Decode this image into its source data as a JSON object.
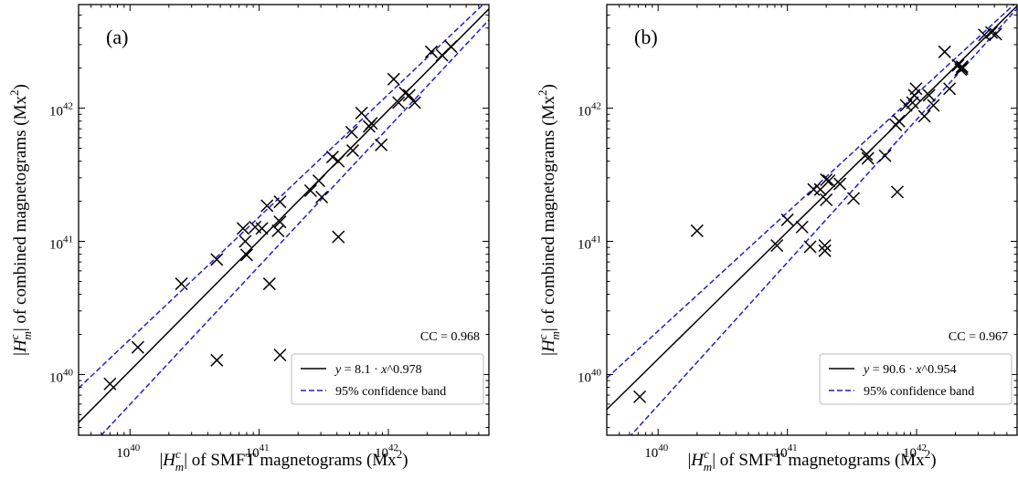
{
  "chart_data": [
    {
      "type": "scatter",
      "panel_label": "(a)",
      "xlabel": "|H_m^c| of SMFT magnetograms (Mx^2)",
      "ylabel": "|H_m^c| of combined magnetograms (Mx^2)",
      "xscale": "log",
      "yscale": "log",
      "xlim": [
        4e+39,
        6e+42
      ],
      "ylim": [
        3.5e+39,
        6e+42
      ],
      "x_ticks": [
        "10^40",
        "10^41",
        "10^42"
      ],
      "y_ticks": [
        "10^40",
        "10^41",
        "10^42"
      ],
      "correlation": "CC = 0.968",
      "fit_label": "y = 8.1 · x^0.978",
      "band_label": "95% confidence band",
      "legend_position": "lower-right",
      "fit": {
        "a": 8.1,
        "b": 0.978
      },
      "band": {
        "lower_at_xmin": 2.3e+39,
        "lower_at_xmax": 4.6e+42,
        "upper_at_xmin": 7.9e+39,
        "upper_at_xmax": 6.6e+42
      },
      "points": [
        [
          7e+39,
          8.5e+39
        ],
        [
          1.15e+40,
          1.6e+40
        ],
        [
          2.5e+40,
          4.8e+40
        ],
        [
          4.7e+40,
          7.3e+40
        ],
        [
          4.7e+40,
          1.28e+40
        ],
        [
          7.5e+40,
          1.25e+41
        ],
        [
          7.8e+40,
          1e+41
        ],
        [
          8e+40,
          7.9e+40
        ],
        [
          9.3e+40,
          1.28e+41
        ],
        [
          1.05e+41,
          1.25e+41
        ],
        [
          1.15e+41,
          1.85e+41
        ],
        [
          1.2e+41,
          4.8e+40
        ],
        [
          1.4e+41,
          1.2e+41
        ],
        [
          1.45e+41,
          1.4e+41
        ],
        [
          1.45e+41,
          1.98e+41
        ],
        [
          1.45e+41,
          1.4e+40
        ],
        [
          2.5e+41,
          2.4e+41
        ],
        [
          2.9e+41,
          2.85e+41
        ],
        [
          3.05e+41,
          2.15e+41
        ],
        [
          3.7e+41,
          4.3e+41
        ],
        [
          4.1e+41,
          4e+41
        ],
        [
          4.1e+41,
          1.08e+41
        ],
        [
          5.2e+41,
          6.6e+41
        ],
        [
          5.3e+41,
          4.8e+41
        ],
        [
          6.2e+41,
          9.2e+41
        ],
        [
          7.1e+41,
          7.3e+41
        ],
        [
          7.4e+41,
          7.7e+41
        ],
        [
          8.8e+41,
          5.3e+41
        ],
        [
          1.1e+42,
          1.65e+42
        ],
        [
          1.2e+42,
          1.1e+42
        ],
        [
          1.35e+42,
          1.3e+42
        ],
        [
          1.45e+42,
          1.25e+42
        ],
        [
          1.6e+42,
          1.1e+42
        ],
        [
          2.15e+42,
          2.65e+42
        ],
        [
          2.6e+42,
          2.5e+42
        ],
        [
          3.05e+42,
          2.9e+42
        ]
      ]
    },
    {
      "type": "scatter",
      "panel_label": "(b)",
      "xlabel": "|H_m^c| of SMFT magnetograms (Mx^2)",
      "ylabel": "|H_m^c| of combined magnetograms (Mx^2)",
      "xscale": "log",
      "yscale": "log",
      "xlim": [
        4e+39,
        6e+42
      ],
      "ylim": [
        3.5e+39,
        6e+42
      ],
      "x_ticks": [
        "10^40",
        "10^41",
        "10^42"
      ],
      "y_ticks": [
        "10^40",
        "10^41",
        "10^42"
      ],
      "correlation": "CC = 0.967",
      "fit_label": "y = 90.6 · x^0.954",
      "band_label": "95% confidence band",
      "legend_position": "lower-right",
      "fit": {
        "a": 90.6,
        "b": 0.954
      },
      "band": {
        "lower_at_xmin": 2.2e+39,
        "lower_at_xmax": 5.6e+42,
        "upper_at_xmin": 9.4e+39,
        "upper_at_xmax": 6.3e+42
      },
      "points": [
        [
          7.2e+39,
          6.8e+39
        ],
        [
          2e+40,
          1.2e+41
        ],
        [
          8.3e+40,
          9.3e+40
        ],
        [
          1e+41,
          1.45e+41
        ],
        [
          1.3e+41,
          1.28e+41
        ],
        [
          1.5e+41,
          9.1e+40
        ],
        [
          1.6e+41,
          2.45e+41
        ],
        [
          1.8e+41,
          2.45e+41
        ],
        [
          1.95e+41,
          8.5e+40
        ],
        [
          1.95e+41,
          9.3e+40
        ],
        [
          2e+41,
          2.05e+41
        ],
        [
          2e+41,
          2.9e+41
        ],
        [
          2.1e+41,
          2.85e+41
        ],
        [
          2.55e+41,
          2.7e+41
        ],
        [
          3.25e+41,
          2.1e+41
        ],
        [
          4.1e+41,
          4.5e+41
        ],
        [
          4.2e+41,
          4.2e+41
        ],
        [
          5.7e+41,
          4.4e+41
        ],
        [
          6.9e+41,
          7.5e+41
        ],
        [
          7.1e+41,
          2.35e+41
        ],
        [
          7.3e+41,
          8e+41
        ],
        [
          8.3e+41,
          1.05e+42
        ],
        [
          9.3e+41,
          1.1e+42
        ],
        [
          9.6e+41,
          1.25e+42
        ],
        [
          9.9e+41,
          1.4e+42
        ],
        [
          1.15e+42,
          8.7e+41
        ],
        [
          1.25e+42,
          1.25e+42
        ],
        [
          1.35e+42,
          1.05e+42
        ],
        [
          1.65e+42,
          2.65e+42
        ],
        [
          1.8e+42,
          1.4e+42
        ],
        [
          2.1e+42,
          2.1e+42
        ],
        [
          2.2e+42,
          1.95e+42
        ],
        [
          2.25e+42,
          1.98e+42
        ],
        [
          2.25e+42,
          2.05e+42
        ],
        [
          3.35e+42,
          3.55e+42
        ],
        [
          3.8e+42,
          3.7e+42
        ],
        [
          4.1e+42,
          3.6e+42
        ]
      ]
    }
  ]
}
